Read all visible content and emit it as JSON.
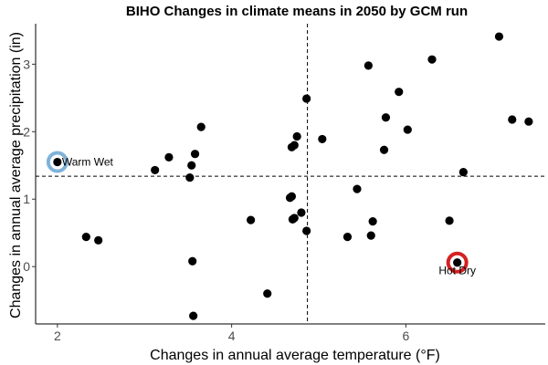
{
  "chart_data": {
    "type": "scatter",
    "title": "BIHO Changes in climate means in 2050 by GCM run",
    "xlabel": "Changes in annual average temperature (°F)",
    "ylabel": "Changes in annual average precipitation (in)",
    "xlim": [
      1.75,
      7.6
    ],
    "ylim": [
      -0.85,
      3.6
    ],
    "x_ticks": [
      2,
      4,
      6
    ],
    "y_ticks": [
      0,
      1,
      2,
      3
    ],
    "grid": false,
    "reference_lines": {
      "x": 4.87,
      "y": 1.34
    },
    "points": [
      {
        "x": 2.0,
        "y": 1.55
      },
      {
        "x": 2.33,
        "y": 0.44
      },
      {
        "x": 2.47,
        "y": 0.39
      },
      {
        "x": 3.12,
        "y": 1.43
      },
      {
        "x": 3.28,
        "y": 1.62
      },
      {
        "x": 3.52,
        "y": 1.32
      },
      {
        "x": 3.54,
        "y": 1.5
      },
      {
        "x": 3.58,
        "y": 1.67
      },
      {
        "x": 3.65,
        "y": 2.07
      },
      {
        "x": 3.55,
        "y": 0.08
      },
      {
        "x": 3.56,
        "y": -0.73
      },
      {
        "x": 4.22,
        "y": 0.69
      },
      {
        "x": 4.41,
        "y": -0.4
      },
      {
        "x": 4.67,
        "y": 1.02
      },
      {
        "x": 4.69,
        "y": 1.04
      },
      {
        "x": 4.69,
        "y": 1.77
      },
      {
        "x": 4.72,
        "y": 1.8
      },
      {
        "x": 4.75,
        "y": 1.93
      },
      {
        "x": 4.7,
        "y": 0.7
      },
      {
        "x": 4.72,
        "y": 0.72
      },
      {
        "x": 4.8,
        "y": 0.8
      },
      {
        "x": 4.86,
        "y": 0.53
      },
      {
        "x": 4.86,
        "y": 2.49
      },
      {
        "x": 5.04,
        "y": 1.89
      },
      {
        "x": 5.33,
        "y": 0.44
      },
      {
        "x": 5.44,
        "y": 1.15
      },
      {
        "x": 5.57,
        "y": 2.98
      },
      {
        "x": 5.6,
        "y": 0.46
      },
      {
        "x": 5.62,
        "y": 0.67
      },
      {
        "x": 5.75,
        "y": 1.73
      },
      {
        "x": 5.77,
        "y": 2.21
      },
      {
        "x": 5.92,
        "y": 2.59
      },
      {
        "x": 6.02,
        "y": 2.03
      },
      {
        "x": 6.3,
        "y": 3.07
      },
      {
        "x": 6.5,
        "y": 0.68
      },
      {
        "x": 6.59,
        "y": 0.06
      },
      {
        "x": 6.66,
        "y": 1.4
      },
      {
        "x": 7.07,
        "y": 3.41
      },
      {
        "x": 7.22,
        "y": 2.18
      },
      {
        "x": 7.41,
        "y": 2.15
      }
    ],
    "highlights": [
      {
        "label": "Warm Wet",
        "x": 2.0,
        "y": 1.55,
        "color": "#7fb2d9"
      },
      {
        "label": "Hot Dry",
        "x": 6.59,
        "y": 0.06,
        "color": "#d62020"
      }
    ]
  }
}
